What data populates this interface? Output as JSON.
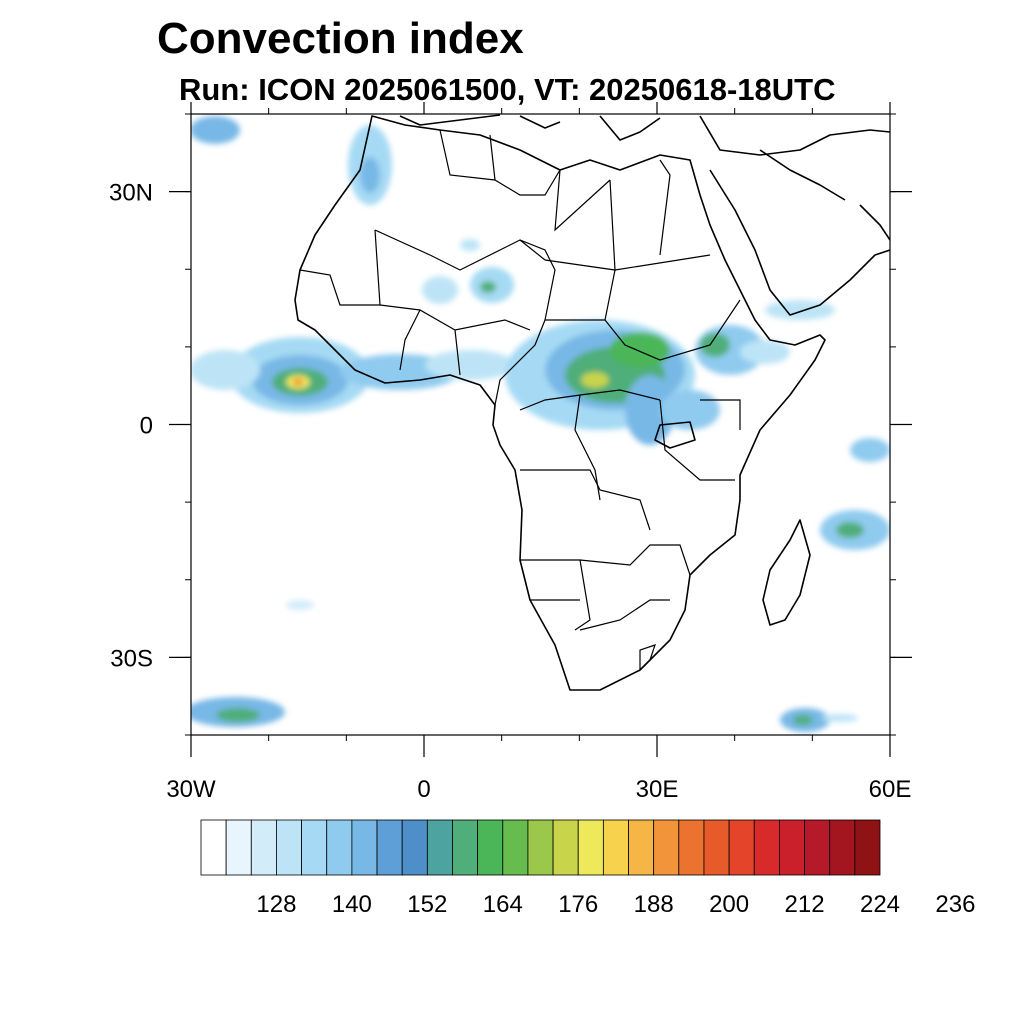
{
  "title": "Convection index",
  "subtitle": "Run: ICON 2025061500,  VT: 20250618-18UTC",
  "map": {
    "lon_range": [
      -30,
      60
    ],
    "lat_range": [
      -40,
      40
    ],
    "lon_ticks": [
      {
        "value": -30,
        "label": "30W"
      },
      {
        "value": 0,
        "label": "0"
      },
      {
        "value": 30,
        "label": "30E"
      },
      {
        "value": 60,
        "label": "60E"
      }
    ],
    "lat_ticks": [
      {
        "value": 30,
        "label": "30N"
      },
      {
        "value": 0,
        "label": "0"
      },
      {
        "value": -30,
        "label": "30S"
      }
    ],
    "minor_lon_step": 10,
    "minor_lat_step": 10
  },
  "colorbar": {
    "colors": [
      "#ffffff",
      "#e8f5fc",
      "#d2ecf9",
      "#bde4f6",
      "#a6daf4",
      "#8fcbef",
      "#78b8e6",
      "#5f9fd8",
      "#4f8fc9",
      "#4da3a0",
      "#4fae79",
      "#4bb658",
      "#66bd4e",
      "#9bc84a",
      "#c8d449",
      "#ede95a",
      "#f7d24d",
      "#f6b645",
      "#f2953a",
      "#ec7230",
      "#e75a2a",
      "#e3442a",
      "#d92a2b",
      "#c9202b",
      "#b5192a",
      "#a3161f",
      "#8f1315"
    ],
    "labels": [
      "128",
      "140",
      "152",
      "164",
      "176",
      "188",
      "200",
      "212",
      "224",
      "236"
    ]
  }
}
